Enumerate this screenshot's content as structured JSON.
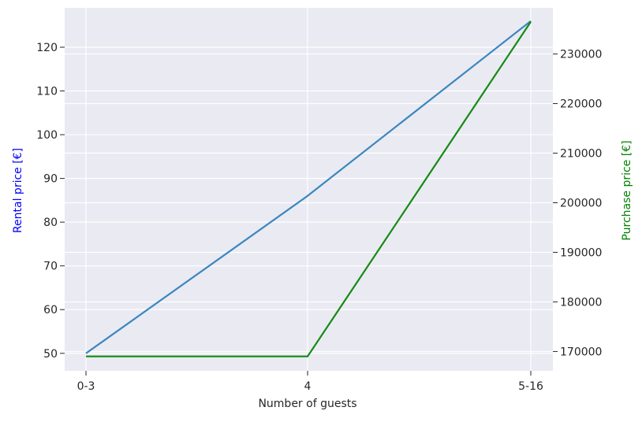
{
  "chart_data": {
    "type": "line",
    "xlabel": "Number of guests",
    "categories": [
      "0-3",
      "4",
      "5-16"
    ],
    "y_left": {
      "label": "Rental price [€]",
      "label_color": "#0000ff",
      "range": [
        46,
        129
      ],
      "ticks": [
        50,
        60,
        70,
        80,
        90,
        100,
        110,
        120
      ]
    },
    "y_right": {
      "label": "Purchase price [€]",
      "label_color": "#008000",
      "range": [
        166100,
        239300
      ],
      "ticks": [
        170000,
        180000,
        190000,
        200000,
        210000,
        220000,
        230000
      ]
    },
    "series": [
      {
        "axis": "left",
        "color": "#3a87c0",
        "values": [
          50,
          86,
          126
        ]
      },
      {
        "axis": "right",
        "color": "#128a12",
        "values": [
          169000,
          169000,
          236500
        ]
      }
    ],
    "grid": true,
    "background": "#eaeaf2",
    "grid_color": "#ffffff"
  }
}
